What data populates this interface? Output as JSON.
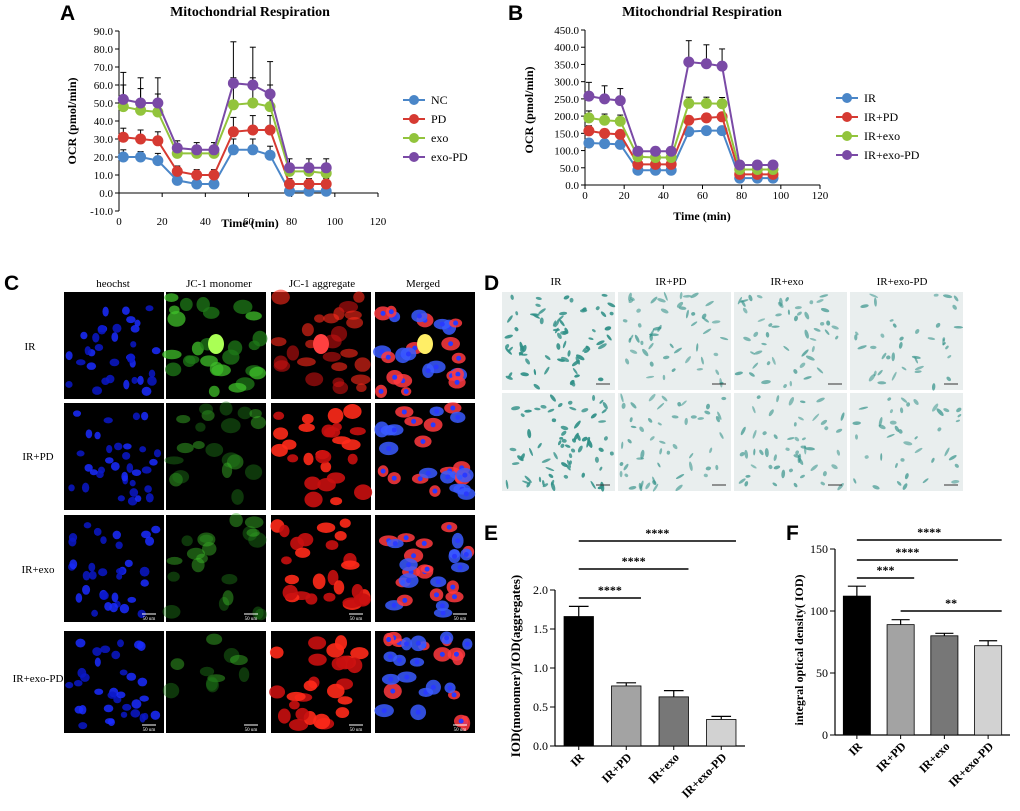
{
  "panels": {
    "A": "A",
    "B": "B",
    "C": "C",
    "D": "D",
    "E": "E",
    "F": "F"
  },
  "colors": {
    "blue": "#4a86c8",
    "red": "#d63a32",
    "green": "#92c43c",
    "purple": "#7a4aa6",
    "bar_black": "#000000",
    "bar_dark": "#a3a3a3",
    "bar_mid": "#777777",
    "bar_light": "#d2d2d2",
    "stain_teal": "#2e8f86",
    "micro_bg": "#000000"
  },
  "panel_c": {
    "headers": [
      "heochst",
      "JC-1 monomer",
      "JC-1 aggregate",
      "Merged"
    ],
    "rows": [
      "IR",
      "IR+PD",
      "IR+exo",
      "IR+exo-PD"
    ],
    "scale_bar": "50 um"
  },
  "panel_d": {
    "headers": [
      "IR",
      "IR+PD",
      "IR+exo",
      "IR+exo-PD"
    ]
  },
  "chart_data": [
    {
      "type": "line",
      "title": "Mitochondrial Respiration",
      "xlabel": "Time (min)",
      "ylabel": "OCR (pmol/min)",
      "xlim": [
        0,
        120
      ],
      "ylim": [
        -10,
        90
      ],
      "xticks": [
        0,
        20,
        40,
        60,
        80,
        100,
        120
      ],
      "yticks": [
        "-10.0",
        "0.0",
        "10.0",
        "20.0",
        "30.0",
        "40.0",
        "50.0",
        "60.0",
        "70.0",
        "80.0",
        "90.0"
      ],
      "x": [
        2,
        10,
        18,
        27,
        36,
        44,
        53,
        62,
        70,
        79,
        88,
        96
      ],
      "series": [
        {
          "name": "NC",
          "color": "#4a86c8",
          "values": [
            20,
            20,
            18,
            7,
            5,
            5,
            24,
            24,
            21,
            1,
            1,
            1
          ],
          "errors": [
            4,
            3,
            4,
            2,
            2,
            2,
            6,
            6,
            5,
            2,
            2,
            2
          ]
        },
        {
          "name": "PD",
          "color": "#d63a32",
          "values": [
            31,
            30,
            29,
            12,
            10,
            10,
            34,
            35,
            35,
            5,
            5,
            5
          ],
          "errors": [
            5,
            5,
            5,
            3,
            3,
            3,
            8,
            8,
            8,
            3,
            3,
            3
          ]
        },
        {
          "name": "exo",
          "color": "#92c43c",
          "values": [
            48,
            46,
            45,
            22,
            22,
            22,
            49,
            50,
            48,
            12,
            12,
            11
          ],
          "errors": [
            12,
            12,
            10,
            4,
            4,
            4,
            15,
            14,
            12,
            4,
            4,
            4
          ]
        },
        {
          "name": "exo-PD",
          "color": "#7a4aa6",
          "values": [
            52,
            50,
            50,
            25,
            24,
            24,
            61,
            60,
            55,
            14,
            14,
            14
          ],
          "errors": [
            15,
            14,
            14,
            4,
            4,
            4,
            23,
            21,
            18,
            5,
            5,
            5
          ]
        }
      ],
      "legend": "right"
    },
    {
      "type": "line",
      "title": "Mitochondrial Respiration",
      "xlabel": "Time (min)",
      "ylabel": "OCR (pmol/min)",
      "xlim": [
        0,
        120
      ],
      "ylim": [
        0,
        450
      ],
      "xticks": [
        0,
        20,
        40,
        60,
        80,
        100,
        120
      ],
      "yticks": [
        "0.0",
        "50.0",
        "100.0",
        "150.0",
        "200.0",
        "250.0",
        "300.0",
        "350.0",
        "400.0",
        "450.0"
      ],
      "x": [
        2,
        10,
        18,
        27,
        36,
        44,
        53,
        62,
        70,
        79,
        88,
        96
      ],
      "series": [
        {
          "name": "IR",
          "color": "#4a86c8",
          "values": [
            122,
            120,
            118,
            43,
            43,
            43,
            155,
            158,
            158,
            20,
            20,
            20
          ],
          "errors": [
            10,
            10,
            10,
            5,
            5,
            5,
            10,
            10,
            10,
            5,
            5,
            5
          ]
        },
        {
          "name": "IR+PD",
          "color": "#d63a32",
          "values": [
            157,
            150,
            147,
            60,
            60,
            60,
            188,
            195,
            198,
            31,
            31,
            31
          ],
          "errors": [
            15,
            12,
            12,
            5,
            5,
            5,
            12,
            12,
            12,
            5,
            5,
            5
          ]
        },
        {
          "name": "IR+exo",
          "color": "#92c43c",
          "values": [
            195,
            188,
            185,
            82,
            80,
            80,
            237,
            237,
            236,
            45,
            45,
            45
          ],
          "errors": [
            20,
            18,
            18,
            8,
            8,
            8,
            18,
            18,
            18,
            6,
            6,
            6
          ]
        },
        {
          "name": "IR+exo-PD",
          "color": "#7a4aa6",
          "values": [
            258,
            250,
            245,
            98,
            98,
            98,
            357,
            352,
            345,
            58,
            58,
            58
          ],
          "errors": [
            40,
            38,
            35,
            10,
            10,
            10,
            62,
            55,
            50,
            10,
            10,
            10
          ]
        }
      ],
      "legend": "right"
    },
    {
      "type": "bar",
      "ylabel": "IOD(monomer)/IOD(aggregates)",
      "categories": [
        "IR",
        "IR+PD",
        "IR+exo",
        "IR+exo-PD"
      ],
      "values": [
        1.66,
        0.77,
        0.63,
        0.34
      ],
      "errors": [
        0.13,
        0.04,
        0.08,
        0.04
      ],
      "ylim": [
        0,
        2.0
      ],
      "yticks": [
        "0.0",
        "0.5",
        "1.0",
        "1.5",
        "2.0"
      ],
      "significance": [
        {
          "from": 0,
          "to": 1,
          "label": "****"
        },
        {
          "from": 0,
          "to": 2,
          "label": "****"
        },
        {
          "from": 0,
          "to": 3,
          "label": "****"
        }
      ]
    },
    {
      "type": "bar",
      "ylabel": "integral optical density( IOD)",
      "categories": [
        "IR",
        "IR+PD",
        "IR+exo",
        "IR+exo-PD"
      ],
      "values": [
        112,
        89,
        80,
        72
      ],
      "errors": [
        8,
        4,
        2,
        4
      ],
      "ylim": [
        0,
        150
      ],
      "yticks": [
        "0",
        "50",
        "100",
        "150"
      ],
      "significance": [
        {
          "from": 0,
          "to": 1,
          "label": "***"
        },
        {
          "from": 0,
          "to": 2,
          "label": "****"
        },
        {
          "from": 0,
          "to": 3,
          "label": "****"
        },
        {
          "from": 1,
          "to": 3,
          "label": "**"
        }
      ]
    }
  ]
}
